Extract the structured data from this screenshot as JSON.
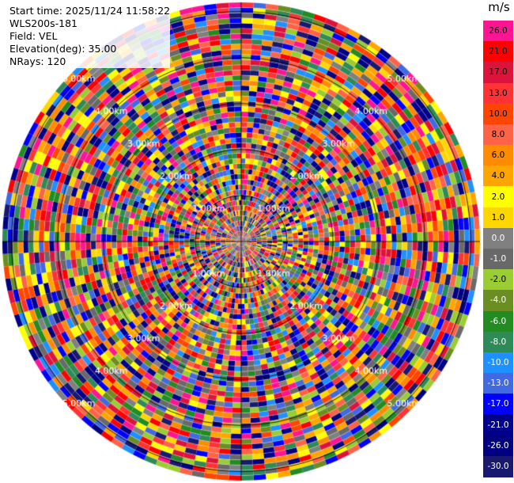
{
  "header": {
    "start_time": "Start time: 2025/11/24 11:58:22",
    "instrument": "WLS200s-181",
    "field": "Field: VEL",
    "elevation": "Elevation(deg): 35.00",
    "nrays": "NRays: 120"
  },
  "colorbar": {
    "unit": "m/s",
    "ticks": [
      "26.0",
      "21.0",
      "17.0",
      "13.0",
      "10.0",
      "8.0",
      "6.0",
      "4.0",
      "2.0",
      "1.0",
      "0.0",
      "-1.0",
      "-2.0",
      "-4.0",
      "-6.0",
      "-8.0",
      "-10.0",
      "-13.0",
      "-17.0",
      "-21.0",
      "-26.0",
      "-30.0"
    ],
    "colors": [
      "#ff1493",
      "#ff0000",
      "#dc143c",
      "#ff3333",
      "#ff4500",
      "#ff6347",
      "#ff8c00",
      "#ffa500",
      "#ffff00",
      "#ffd700",
      "#808080",
      "#696969",
      "#9acd32",
      "#6b8e23",
      "#228b22",
      "#2e8b57",
      "#1e90ff",
      "#4169e1",
      "#0000ff",
      "#00008b",
      "#000080",
      "#191970"
    ]
  },
  "chart_data": {
    "type": "heatmap",
    "projection": "polar-ppi",
    "field": "VEL",
    "units": "m/s",
    "nrays": 120,
    "elevation_deg": 35.0,
    "range_rings_km": [
      1,
      2,
      3,
      4,
      5
    ],
    "ring_labels": [
      "1.00km",
      "2.00km",
      "3.00km",
      "4.00km",
      "5.00km"
    ],
    "value_range": [
      -30,
      26
    ],
    "seed": 181
  }
}
